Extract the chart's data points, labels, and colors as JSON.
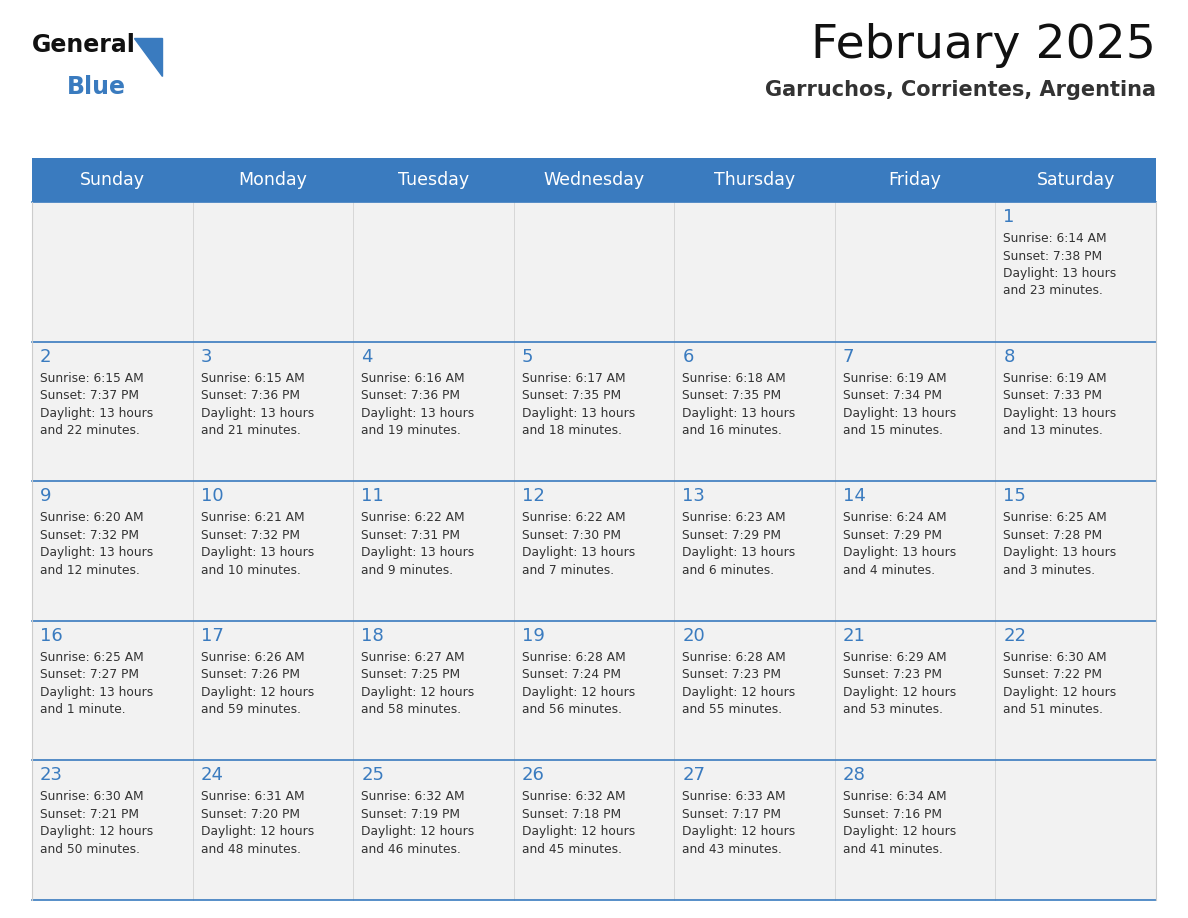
{
  "title": "February 2025",
  "subtitle": "Garruchos, Corrientes, Argentina",
  "header_color": "#3a7bbf",
  "header_text_color": "#ffffff",
  "cell_bg_color": "#f2f2f2",
  "cell_bg_empty": "#f2f2f2",
  "day_number_color": "#3a7bbf",
  "text_color": "#333333",
  "border_color": "#3a7bbf",
  "days_of_week": [
    "Sunday",
    "Monday",
    "Tuesday",
    "Wednesday",
    "Thursday",
    "Friday",
    "Saturday"
  ],
  "calendar_data": [
    [
      null,
      null,
      null,
      null,
      null,
      null,
      {
        "day": 1,
        "sunrise": "6:14 AM",
        "sunset": "7:38 PM",
        "daylight": "13 hours\nand 23 minutes."
      }
    ],
    [
      {
        "day": 2,
        "sunrise": "6:15 AM",
        "sunset": "7:37 PM",
        "daylight": "13 hours\nand 22 minutes."
      },
      {
        "day": 3,
        "sunrise": "6:15 AM",
        "sunset": "7:36 PM",
        "daylight": "13 hours\nand 21 minutes."
      },
      {
        "day": 4,
        "sunrise": "6:16 AM",
        "sunset": "7:36 PM",
        "daylight": "13 hours\nand 19 minutes."
      },
      {
        "day": 5,
        "sunrise": "6:17 AM",
        "sunset": "7:35 PM",
        "daylight": "13 hours\nand 18 minutes."
      },
      {
        "day": 6,
        "sunrise": "6:18 AM",
        "sunset": "7:35 PM",
        "daylight": "13 hours\nand 16 minutes."
      },
      {
        "day": 7,
        "sunrise": "6:19 AM",
        "sunset": "7:34 PM",
        "daylight": "13 hours\nand 15 minutes."
      },
      {
        "day": 8,
        "sunrise": "6:19 AM",
        "sunset": "7:33 PM",
        "daylight": "13 hours\nand 13 minutes."
      }
    ],
    [
      {
        "day": 9,
        "sunrise": "6:20 AM",
        "sunset": "7:32 PM",
        "daylight": "13 hours\nand 12 minutes."
      },
      {
        "day": 10,
        "sunrise": "6:21 AM",
        "sunset": "7:32 PM",
        "daylight": "13 hours\nand 10 minutes."
      },
      {
        "day": 11,
        "sunrise": "6:22 AM",
        "sunset": "7:31 PM",
        "daylight": "13 hours\nand 9 minutes."
      },
      {
        "day": 12,
        "sunrise": "6:22 AM",
        "sunset": "7:30 PM",
        "daylight": "13 hours\nand 7 minutes."
      },
      {
        "day": 13,
        "sunrise": "6:23 AM",
        "sunset": "7:29 PM",
        "daylight": "13 hours\nand 6 minutes."
      },
      {
        "day": 14,
        "sunrise": "6:24 AM",
        "sunset": "7:29 PM",
        "daylight": "13 hours\nand 4 minutes."
      },
      {
        "day": 15,
        "sunrise": "6:25 AM",
        "sunset": "7:28 PM",
        "daylight": "13 hours\nand 3 minutes."
      }
    ],
    [
      {
        "day": 16,
        "sunrise": "6:25 AM",
        "sunset": "7:27 PM",
        "daylight": "13 hours\nand 1 minute."
      },
      {
        "day": 17,
        "sunrise": "6:26 AM",
        "sunset": "7:26 PM",
        "daylight": "12 hours\nand 59 minutes."
      },
      {
        "day": 18,
        "sunrise": "6:27 AM",
        "sunset": "7:25 PM",
        "daylight": "12 hours\nand 58 minutes."
      },
      {
        "day": 19,
        "sunrise": "6:28 AM",
        "sunset": "7:24 PM",
        "daylight": "12 hours\nand 56 minutes."
      },
      {
        "day": 20,
        "sunrise": "6:28 AM",
        "sunset": "7:23 PM",
        "daylight": "12 hours\nand 55 minutes."
      },
      {
        "day": 21,
        "sunrise": "6:29 AM",
        "sunset": "7:23 PM",
        "daylight": "12 hours\nand 53 minutes."
      },
      {
        "day": 22,
        "sunrise": "6:30 AM",
        "sunset": "7:22 PM",
        "daylight": "12 hours\nand 51 minutes."
      }
    ],
    [
      {
        "day": 23,
        "sunrise": "6:30 AM",
        "sunset": "7:21 PM",
        "daylight": "12 hours\nand 50 minutes."
      },
      {
        "day": 24,
        "sunrise": "6:31 AM",
        "sunset": "7:20 PM",
        "daylight": "12 hours\nand 48 minutes."
      },
      {
        "day": 25,
        "sunrise": "6:32 AM",
        "sunset": "7:19 PM",
        "daylight": "12 hours\nand 46 minutes."
      },
      {
        "day": 26,
        "sunrise": "6:32 AM",
        "sunset": "7:18 PM",
        "daylight": "12 hours\nand 45 minutes."
      },
      {
        "day": 27,
        "sunrise": "6:33 AM",
        "sunset": "7:17 PM",
        "daylight": "12 hours\nand 43 minutes."
      },
      {
        "day": 28,
        "sunrise": "6:34 AM",
        "sunset": "7:16 PM",
        "daylight": "12 hours\nand 41 minutes."
      },
      null
    ]
  ],
  "logo_text_general": "General",
  "logo_text_blue": "Blue",
  "logo_color_general": "#111111",
  "logo_color_blue": "#3a7bbf",
  "fig_width": 11.88,
  "fig_height": 9.18,
  "dpi": 100
}
